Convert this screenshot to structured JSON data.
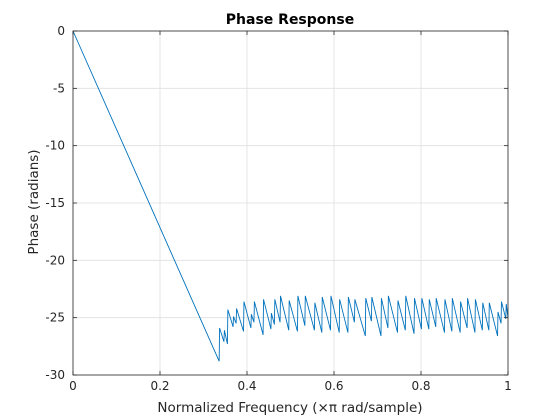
{
  "chart_data": {
    "type": "line",
    "title": "Phase Response",
    "xlabel": "Normalized Frequency  (×π rad/sample)",
    "ylabel": "Phase (radians)",
    "xlim": [
      0,
      1
    ],
    "ylim": [
      -30,
      0
    ],
    "xticks": [
      0,
      0.2,
      0.4,
      0.6,
      0.8,
      1
    ],
    "xtick_labels": [
      "0",
      "0.2",
      "0.4",
      "0.6",
      "0.8",
      "1"
    ],
    "yticks": [
      0,
      -5,
      -10,
      -15,
      -20,
      -25,
      -30
    ],
    "ytick_labels": [
      "0",
      "-5",
      "-10",
      "-15",
      "-20",
      "-25",
      "-30"
    ],
    "grid": true,
    "line_color": "#0072BD",
    "series": [
      {
        "x": [
          0,
          0.336,
          0.337,
          0.347,
          0.348,
          0.355,
          0.356,
          0.368,
          0.369,
          0.375,
          0.376,
          0.392,
          0.393,
          0.409,
          0.41,
          0.416,
          0.417,
          0.437,
          0.438,
          0.455,
          0.456,
          0.463,
          0.464,
          0.476,
          0.477,
          0.496,
          0.497,
          0.516,
          0.517,
          0.533,
          0.534,
          0.555,
          0.556,
          0.572,
          0.573,
          0.592,
          0.593,
          0.612,
          0.613,
          0.632,
          0.633,
          0.647,
          0.648,
          0.672,
          0.673,
          0.686,
          0.687,
          0.708,
          0.709,
          0.724,
          0.725,
          0.746,
          0.747,
          0.764,
          0.765,
          0.784,
          0.785,
          0.801,
          0.802,
          0.818,
          0.819,
          0.834,
          0.835,
          0.854,
          0.855,
          0.871,
          0.872,
          0.89,
          0.891,
          0.906,
          0.907,
          0.924,
          0.925,
          0.941,
          0.942,
          0.956,
          0.957,
          0.976,
          0.977,
          0.984,
          0.985,
          0.995,
          0.996,
          1.0
        ],
        "y": [
          0,
          -28.8,
          -25.9,
          -27.1,
          -26.1,
          -27.3,
          -24.3,
          -25.8,
          -24.9,
          -25.5,
          -24.2,
          -26.2,
          -23.6,
          -25.9,
          -24.7,
          -25.4,
          -23.6,
          -26.5,
          -23.4,
          -26.0,
          -24.6,
          -25.6,
          -23.4,
          -25.4,
          -23.1,
          -26.1,
          -23.5,
          -26.2,
          -23.1,
          -25.7,
          -23.1,
          -26.1,
          -23.7,
          -26.3,
          -23.2,
          -26.1,
          -23.1,
          -26.3,
          -23.4,
          -26.3,
          -23.2,
          -25.4,
          -23.4,
          -26.6,
          -23.3,
          -25.3,
          -23.2,
          -26.6,
          -23.3,
          -25.9,
          -23.1,
          -26.3,
          -23.5,
          -26.1,
          -23.1,
          -26.4,
          -23.3,
          -26.0,
          -23.3,
          -26.0,
          -23.4,
          -25.8,
          -23.3,
          -26.3,
          -23.4,
          -26.2,
          -23.3,
          -26.3,
          -23.6,
          -25.9,
          -23.3,
          -26.3,
          -23.4,
          -26.1,
          -23.7,
          -26.1,
          -23.7,
          -26.6,
          -24.5,
          -25.5,
          -23.6,
          -25.1,
          -23.8,
          -25.0
        ]
      }
    ]
  }
}
